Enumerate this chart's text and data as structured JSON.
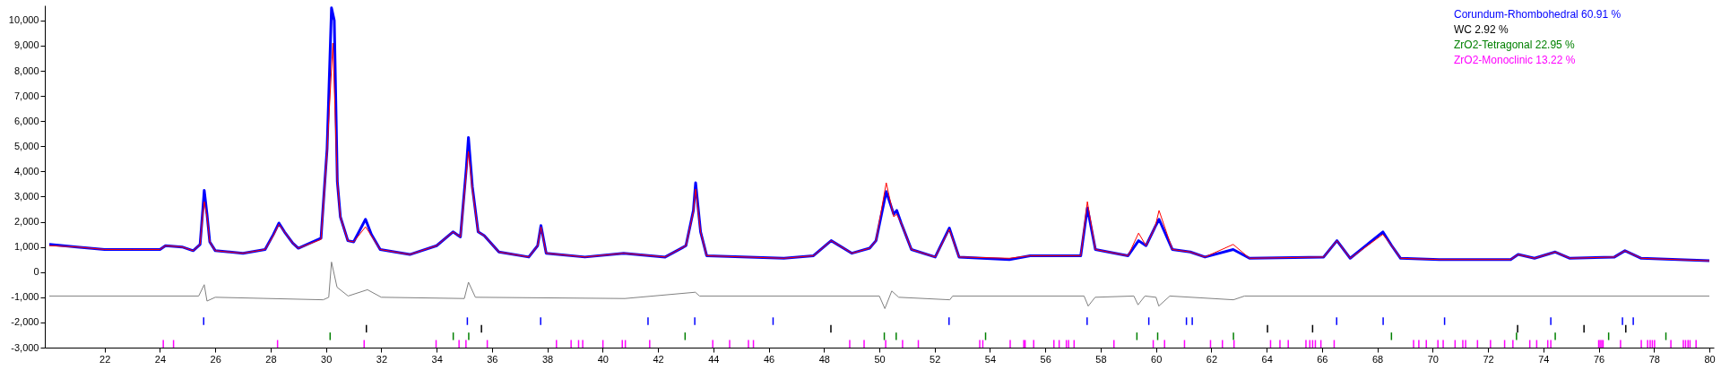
{
  "chart_data": {
    "type": "line",
    "legend": "top right",
    "xlim": [
      20,
      80
    ],
    "xticks": [
      22,
      24,
      26,
      28,
      30,
      32,
      34,
      36,
      38,
      40,
      42,
      44,
      46,
      48,
      50,
      52,
      54,
      56,
      58,
      60,
      62,
      64,
      66,
      68,
      70,
      72,
      74,
      76,
      78,
      80
    ],
    "ylim": [
      -3000,
      10600
    ],
    "yticks": [
      {
        "value": -3000,
        "label": "-3,000"
      },
      {
        "value": -2000,
        "label": "-2,000"
      },
      {
        "value": -1000,
        "label": "-1,000"
      },
      0,
      {
        "value": 1000,
        "label": "1,000"
      },
      {
        "value": 2000,
        "label": "2,000"
      },
      {
        "value": 3000,
        "label": "3,000"
      },
      {
        "value": 4000,
        "label": "4,000"
      },
      {
        "value": 5000,
        "label": "5,000"
      },
      {
        "value": 6000,
        "label": "6,000"
      },
      {
        "value": 7000,
        "label": "7,000"
      },
      {
        "value": 8000,
        "label": "8,000"
      },
      {
        "value": 9000,
        "label": "9,000"
      },
      {
        "value": 10000,
        "label": "10,000"
      }
    ],
    "series": [
      {
        "color": "#0000ff",
        "x": [
          20,
          21,
          22,
          23,
          24,
          24.2,
          24.8,
          25.2,
          25.45,
          25.55,
          25.6,
          25.7,
          25.8,
          26,
          27,
          27.8,
          28.1,
          28.3,
          28.5,
          28.8,
          29.0,
          29.82,
          30.04,
          30.2,
          30.3,
          30.41,
          30.52,
          30.79,
          31.0,
          31.43,
          31.64,
          31.96,
          33.03,
          34.0,
          34.59,
          34.86,
          35.07,
          35.15,
          35.29,
          35.5,
          35.72,
          36.25,
          37.33,
          37.65,
          37.77,
          37.96,
          39.36,
          40.76,
          42.26,
          43.01,
          43.28,
          43.36,
          43.54,
          43.76,
          46.55,
          47.62,
          48.26,
          49.01,
          49.65,
          49.88,
          50.25,
          50.52,
          50.63,
          50.79,
          51.16,
          52.02,
          52.53,
          52.88,
          54.7,
          55.45,
          57.28,
          57.52,
          57.81,
          58.99,
          59.37,
          59.64,
          59.97,
          60.11,
          60.59,
          61.24,
          61.77,
          62.79,
          63.38,
          66.06,
          66.54,
          67.02,
          68.2,
          68.52,
          68.84,
          70.24,
          72.82,
          73.09,
          73.68,
          74.43,
          74.96,
          76.57,
          76.95,
          77.54,
          80
        ],
        "values": [
          1100,
          1000,
          900,
          900,
          900,
          1050,
          1000,
          850,
          1100,
          2500,
          3250,
          2300,
          1200,
          850,
          750,
          900,
          1500,
          1950,
          1600,
          1150,
          950,
          1350,
          4900,
          10500,
          10000,
          3600,
          2200,
          1250,
          1200,
          2100,
          1500,
          900,
          700,
          1050,
          1600,
          1400,
          4100,
          5350,
          3400,
          1600,
          1450,
          800,
          600,
          1050,
          1850,
          750,
          600,
          750,
          600,
          1050,
          2450,
          3550,
          1600,
          650,
          550,
          650,
          1250,
          750,
          950,
          1250,
          3200,
          2300,
          2450,
          1950,
          900,
          600,
          1750,
          600,
          500,
          650,
          650,
          2550,
          900,
          650,
          1250,
          1050,
          1800,
          2100,
          900,
          800,
          600,
          900,
          550,
          600,
          1250,
          550,
          1600,
          1050,
          550,
          500,
          500,
          700,
          550,
          800,
          550,
          600,
          850,
          550,
          450
        ]
      },
      {
        "color": "#ff0000",
        "x": [
          20,
          21,
          22,
          23,
          24,
          24.2,
          24.8,
          25.2,
          25.45,
          25.55,
          25.6,
          25.7,
          25.8,
          26,
          27,
          27.8,
          28.1,
          28.3,
          28.5,
          28.8,
          29.0,
          29.82,
          30.04,
          30.25,
          30.41,
          30.52,
          30.79,
          31.0,
          31.43,
          31.64,
          31.96,
          33.03,
          34.0,
          34.59,
          34.86,
          35.07,
          35.15,
          35.29,
          35.5,
          35.72,
          36.25,
          37.33,
          37.65,
          37.77,
          37.96,
          39.36,
          40.76,
          42.26,
          43.01,
          43.28,
          43.36,
          43.54,
          43.76,
          46.55,
          47.62,
          48.26,
          49.01,
          49.65,
          49.88,
          50.25,
          50.52,
          50.63,
          50.79,
          51.16,
          52.02,
          52.53,
          52.88,
          54.7,
          55.45,
          57.28,
          57.52,
          57.81,
          58.99,
          59.37,
          59.64,
          59.97,
          60.11,
          60.59,
          61.24,
          61.77,
          62.79,
          63.38,
          66.06,
          66.54,
          67.02,
          68.2,
          68.52,
          68.84,
          70.24,
          72.82,
          73.09,
          73.68,
          74.43,
          74.96,
          76.57,
          76.95,
          77.54,
          80
        ],
        "values": [
          1050,
          1000,
          900,
          900,
          900,
          1050,
          1000,
          850,
          1100,
          2300,
          2800,
          2200,
          1200,
          850,
          750,
          900,
          1450,
          1900,
          1600,
          1150,
          950,
          1300,
          4800,
          9100,
          3600,
          2200,
          1250,
          1200,
          1800,
          1450,
          900,
          700,
          1050,
          1600,
          1400,
          3900,
          4800,
          3300,
          1600,
          1450,
          800,
          600,
          1050,
          1800,
          750,
          600,
          750,
          600,
          1050,
          2400,
          3300,
          1600,
          650,
          550,
          650,
          1250,
          750,
          950,
          1250,
          3550,
          2200,
          2300,
          1950,
          900,
          600,
          1700,
          600,
          550,
          650,
          650,
          2800,
          900,
          650,
          1550,
          1050,
          1800,
          2450,
          900,
          800,
          600,
          1100,
          550,
          600,
          1250,
          550,
          1500,
          1050,
          550,
          500,
          500,
          700,
          550,
          800,
          550,
          600,
          850,
          550,
          450
        ]
      },
      {
        "color": "#808080",
        "x": [
          20,
          25.4,
          25.6,
          25.7,
          26,
          29.9,
          30.1,
          30.2,
          30.4,
          30.8,
          31.5,
          32,
          35.0,
          35.15,
          35.4,
          40.8,
          43.35,
          43.5,
          50.0,
          50.2,
          50.45,
          50.7,
          52.55,
          52.65,
          57.4,
          57.55,
          57.8,
          59.2,
          59.35,
          59.6,
          60.0,
          60.1,
          60.5,
          62.8,
          63.2,
          80
        ],
        "values": [
          -950,
          -950,
          -500,
          -1150,
          -1000,
          -1100,
          -1000,
          400,
          -600,
          -950,
          -700,
          -1000,
          -1050,
          -400,
          -1000,
          -1050,
          -800,
          -950,
          -950,
          -1450,
          -750,
          -1000,
          -1100,
          -950,
          -950,
          -1350,
          -1000,
          -950,
          -1300,
          -950,
          -1000,
          -1350,
          -950,
          -1100,
          -950,
          -950
        ]
      },
      {
        "type": "bar",
        "name": "Corundum-Rhombohedral 60.91 %",
        "color": "#0000ff",
        "x": [
          25.58,
          35.11,
          37.76,
          41.64,
          43.33,
          46.16,
          52.52,
          57.51,
          59.74,
          61.1,
          61.31,
          66.53,
          68.21,
          70.43,
          74.27,
          76.86,
          77.25
        ],
        "base": [
          -2100,
          -2100,
          -2100,
          -2100,
          -2100,
          -2100,
          -2100,
          -2100,
          -2100,
          -2100,
          -2100,
          -2100,
          -2100,
          -2100,
          -2100,
          -2100,
          -2100
        ],
        "values": [
          300,
          300,
          300,
          300,
          300,
          300,
          300,
          300,
          300,
          300,
          300,
          300,
          300,
          300,
          300,
          300,
          300
        ]
      },
      {
        "type": "bar",
        "name": "WC 2.92 %",
        "color": "#000000",
        "x": [
          31.46,
          35.62,
          48.25,
          64.03,
          65.66,
          73.07,
          75.47,
          76.98
        ],
        "base": [
          -2400,
          -2400,
          -2400,
          -2400,
          -2400,
          -2400,
          -2400,
          -2400
        ],
        "values": [
          300,
          300,
          300,
          300,
          300,
          300,
          300,
          300
        ]
      },
      {
        "type": "bar",
        "name": "ZrO2-Tetragonal 22.95 %",
        "color": "#008000",
        "x": [
          30.15,
          34.6,
          35.16,
          42.98,
          50.18,
          50.61,
          53.84,
          59.31,
          60.06,
          62.8,
          68.51,
          73.03,
          74.43,
          76.36,
          78.43
        ],
        "base": [
          -2700,
          -2700,
          -2700,
          -2700,
          -2700,
          -2700,
          -2700,
          -2700,
          -2700,
          -2700,
          -2700,
          -2700,
          -2700,
          -2700,
          -2700
        ],
        "values": [
          300,
          300,
          300,
          300,
          300,
          300,
          300,
          300,
          300,
          300,
          300,
          300,
          300,
          300,
          300
        ]
      },
      {
        "type": "bar",
        "name": "ZrO2-Monoclinic 13.22 %",
        "color": "#ff00ff",
        "x": [
          24.12,
          24.49,
          28.25,
          31.38,
          33.98,
          34.81,
          35.06,
          35.83,
          38.33,
          38.86,
          39.13,
          39.28,
          40.01,
          40.71,
          40.82,
          41.7,
          43.98,
          44.59,
          45.27,
          45.45,
          48.93,
          49.45,
          50.23,
          50.84,
          51.41,
          53.63,
          53.74,
          54.73,
          55.22,
          55.27,
          55.58,
          56.31,
          56.5,
          56.76,
          56.84,
          57.04,
          58.48,
          59.9,
          60.31,
          61.03,
          61.97,
          62.4,
          62.82,
          64.14,
          64.48,
          64.78,
          65.42,
          65.56,
          65.66,
          65.76,
          65.96,
          66.44,
          69.31,
          69.5,
          69.77,
          70.19,
          70.38,
          70.81,
          71.09,
          71.19,
          71.62,
          72.09,
          72.6,
          72.9,
          73.51,
          73.76,
          74.16,
          74.27,
          76.0,
          76.05,
          76.11,
          76.16,
          76.79,
          77.54,
          77.77,
          77.86,
          77.94,
          78.02,
          78.61,
          79.06,
          79.14,
          79.23,
          79.3,
          79.52
        ],
        "base": [
          -3000,
          -3000,
          -3000,
          -3000,
          -3000,
          -3000,
          -3000,
          -3000,
          -3000,
          -3000,
          -3000,
          -3000,
          -3000,
          -3000,
          -3000,
          -3000,
          -3000,
          -3000,
          -3000,
          -3000,
          -3000,
          -3000,
          -3000,
          -3000,
          -3000,
          -3000,
          -3000,
          -3000,
          -3000,
          -3000,
          -3000,
          -3000,
          -3000,
          -3000,
          -3000,
          -3000,
          -3000,
          -3000,
          -3000,
          -3000,
          -3000,
          -3000,
          -3000,
          -3000,
          -3000,
          -3000,
          -3000,
          -3000,
          -3000,
          -3000,
          -3000,
          -3000,
          -3000,
          -3000,
          -3000,
          -3000,
          -3000,
          -3000,
          -3000,
          -3000,
          -3000,
          -3000,
          -3000,
          -3000,
          -3000,
          -3000,
          -3000,
          -3000,
          -3000,
          -3000,
          -3000,
          -3000,
          -3000,
          -3000,
          -3000,
          -3000,
          -3000,
          -3000,
          -3000,
          -3000,
          -3000,
          -3000,
          -3000,
          -3000
        ],
        "values": [
          300,
          300,
          300,
          300,
          300,
          300,
          300,
          300,
          300,
          300,
          300,
          300,
          300,
          300,
          300,
          300,
          300,
          300,
          300,
          300,
          300,
          300,
          300,
          300,
          300,
          300,
          300,
          300,
          300,
          300,
          300,
          300,
          300,
          300,
          300,
          300,
          300,
          300,
          300,
          300,
          300,
          300,
          300,
          300,
          300,
          300,
          300,
          300,
          300,
          300,
          300,
          300,
          300,
          300,
          300,
          300,
          300,
          300,
          300,
          300,
          300,
          300,
          300,
          300,
          300,
          300,
          300,
          300,
          300,
          300,
          300,
          300,
          300,
          300,
          300,
          300,
          300,
          300,
          300,
          300,
          300,
          300,
          300,
          300
        ]
      }
    ]
  }
}
